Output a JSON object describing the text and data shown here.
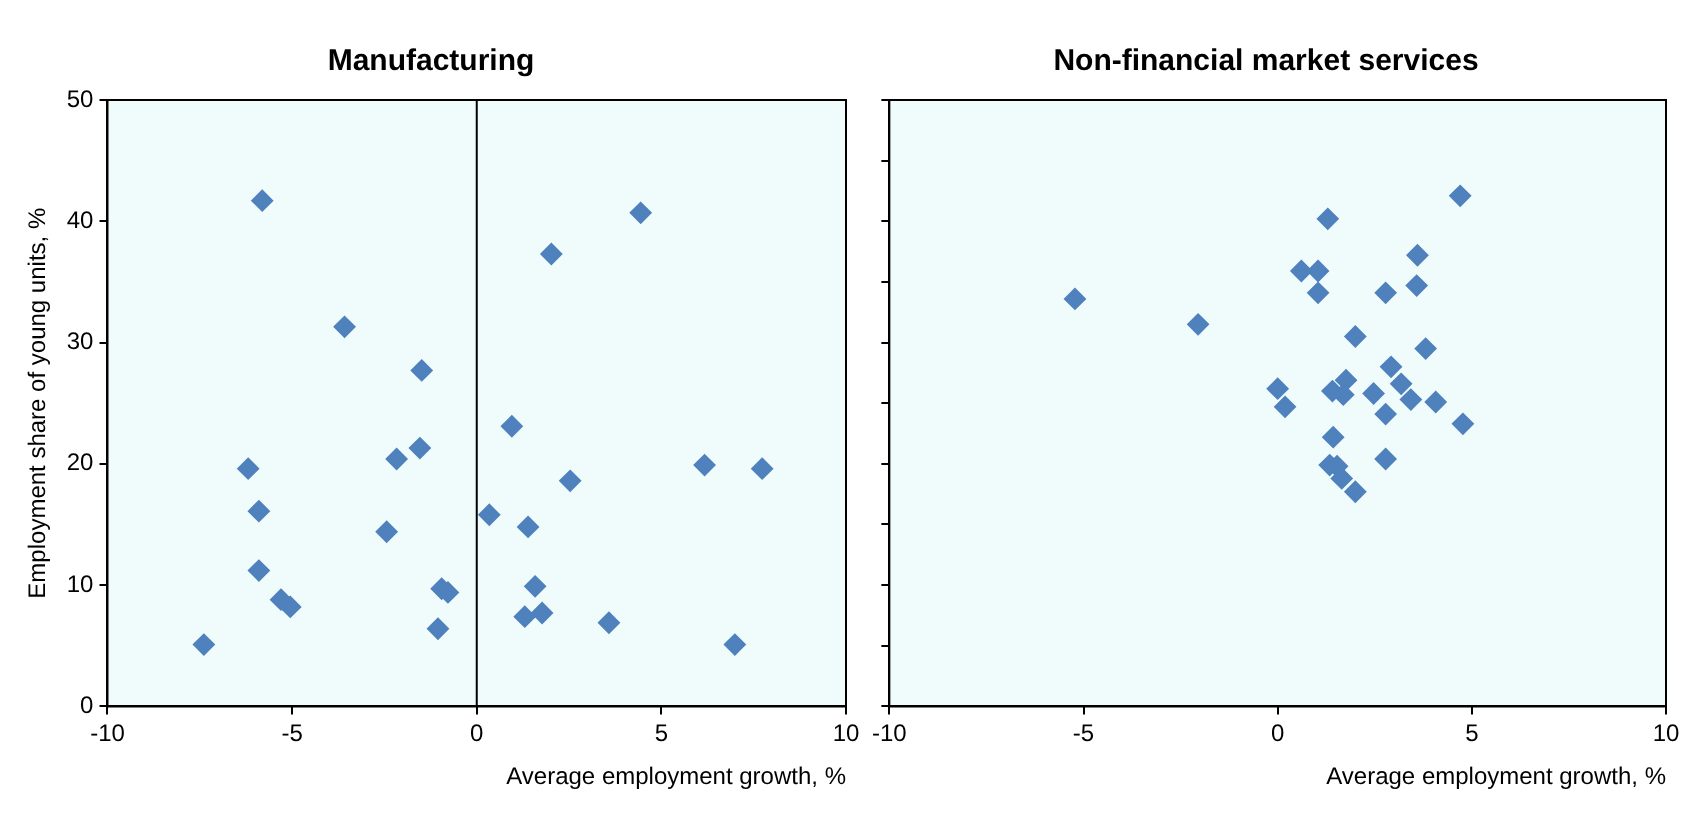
{
  "chart_data": [
    {
      "type": "scatter",
      "title": "Manufacturing",
      "xlabel": "Average employment growth, %",
      "ylabel": "Employment share of young units, %",
      "marker": "diamond",
      "xlim": [
        -10,
        10
      ],
      "xticks": [
        -10,
        -5,
        0,
        5,
        10
      ],
      "ylim": [
        0,
        50
      ],
      "yticks": [
        0,
        10,
        20,
        30,
        40,
        50
      ],
      "ref_lines": [
        {
          "axis": "x",
          "value": 0
        }
      ],
      "series": [
        {
          "color": "#4f81bd",
          "x": [
            -5.81,
            -3.58,
            -1.49,
            -6.19,
            -2.17,
            -1.54,
            -5.9,
            -2.44,
            -5.9,
            -5.3,
            -5.05,
            -0.95,
            -0.78,
            -1.05,
            -7.39,
            4.44,
            2.02,
            0.95,
            6.17,
            7.73,
            2.53,
            0.34,
            1.39,
            1.58,
            1.3,
            1.77,
            3.58,
            6.99
          ],
          "values": [
            41.7,
            31.3,
            27.7,
            19.6,
            20.4,
            21.3,
            16.1,
            14.4,
            11.2,
            8.8,
            8.2,
            9.7,
            9.4,
            6.4,
            5.1,
            40.7,
            37.3,
            23.1,
            19.9,
            19.6,
            18.6,
            15.8,
            14.8,
            9.9,
            7.4,
            7.7,
            6.9,
            5.1
          ]
        }
      ]
    },
    {
      "type": "scatter",
      "title": "Non-financial market services",
      "xlabel": "Average employment growth, %",
      "marker": "diamond",
      "xlim": [
        -10,
        10
      ],
      "xticks": [
        -10,
        -5,
        0,
        5,
        10
      ],
      "ylim": [
        0,
        50
      ],
      "tick_labels": "x",
      "series": [
        {
          "color": "#4f81bd",
          "x": [
            4.7,
            1.29,
            -5.22,
            -2.05,
            0.61,
            1.04,
            1.04,
            3.6,
            3.58,
            2.78,
            2.0,
            3.81,
            2.92,
            3.18,
            1.76,
            1.41,
            1.69,
            2.47,
            3.43,
            4.07,
            0.0,
            0.19,
            2.78,
            4.77,
            1.43,
            2.78,
            1.34,
            1.53,
            1.65,
            2.0
          ],
          "values": [
            42.1,
            40.2,
            33.6,
            31.5,
            35.9,
            35.9,
            34.1,
            37.2,
            34.7,
            34.1,
            30.5,
            29.5,
            28.0,
            26.6,
            26.9,
            26.0,
            25.7,
            25.8,
            25.3,
            25.1,
            26.2,
            24.7,
            24.1,
            23.3,
            22.2,
            20.4,
            19.9,
            19.8,
            18.8,
            17.7
          ]
        }
      ]
    }
  ]
}
